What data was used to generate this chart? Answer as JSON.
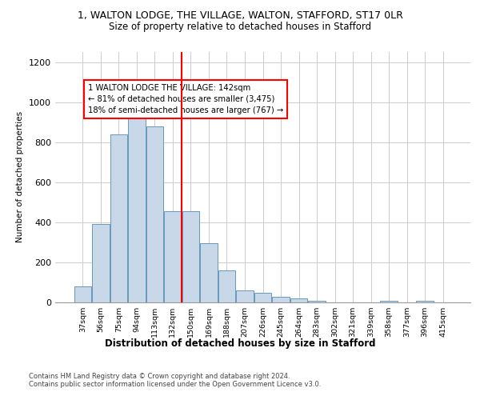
{
  "title_line1": "1, WALTON LODGE, THE VILLAGE, WALTON, STAFFORD, ST17 0LR",
  "title_line2": "Size of property relative to detached houses in Stafford",
  "xlabel": "Distribution of detached houses by size in Stafford",
  "ylabel": "Number of detached properties",
  "categories": [
    "37sqm",
    "56sqm",
    "75sqm",
    "94sqm",
    "113sqm",
    "132sqm",
    "150sqm",
    "169sqm",
    "188sqm",
    "207sqm",
    "226sqm",
    "245sqm",
    "264sqm",
    "283sqm",
    "302sqm",
    "321sqm",
    "339sqm",
    "358sqm",
    "377sqm",
    "396sqm",
    "415sqm"
  ],
  "values": [
    80,
    390,
    840,
    960,
    880,
    455,
    455,
    295,
    160,
    60,
    45,
    28,
    18,
    5,
    0,
    0,
    0,
    8,
    0,
    8,
    0
  ],
  "bar_color": "#c8d8e8",
  "bar_edge_color": "#6699bb",
  "vline_x": 5.5,
  "vline_color": "red",
  "annotation_text": "1 WALTON LODGE THE VILLAGE: 142sqm\n← 81% of detached houses are smaller (3,475)\n18% of semi-detached houses are larger (767) →",
  "annotation_box_color": "white",
  "annotation_box_edge_color": "red",
  "ylim": [
    0,
    1250
  ],
  "yticks": [
    0,
    200,
    400,
    600,
    800,
    1000,
    1200
  ],
  "footer1": "Contains HM Land Registry data © Crown copyright and database right 2024.",
  "footer2": "Contains public sector information licensed under the Open Government Licence v3.0.",
  "bg_color": "white",
  "grid_color": "#cccccc"
}
